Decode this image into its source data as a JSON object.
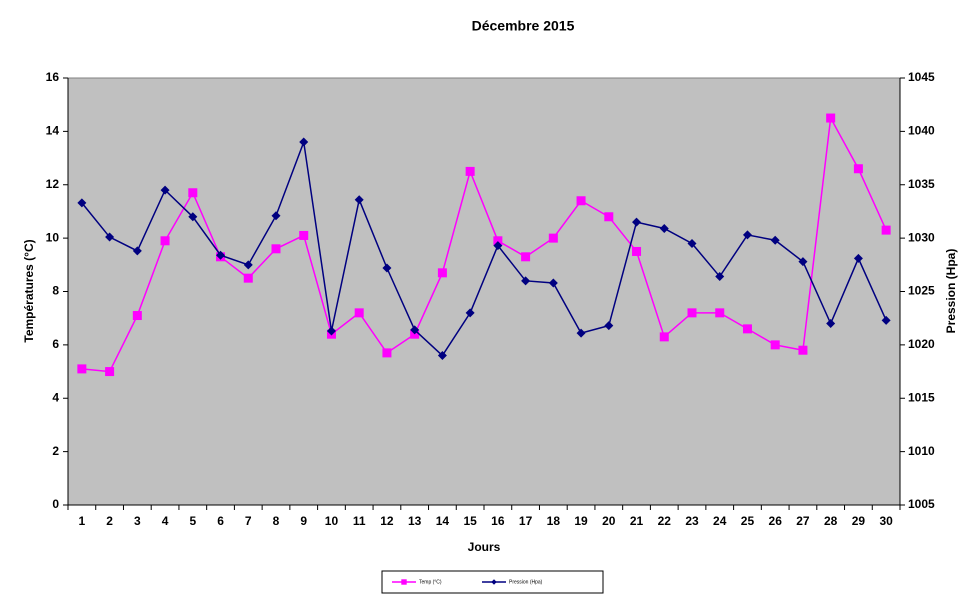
{
  "chart_data": {
    "type": "line",
    "title": "Décembre 2015",
    "x_label": "Jours",
    "y_label": "Températures (°C)",
    "y2_label": "Pression (Hpa)",
    "categories": [
      "1",
      "2",
      "3",
      "4",
      "5",
      "6",
      "7",
      "8",
      "9",
      "10",
      "11",
      "12",
      "13",
      "14",
      "15",
      "16",
      "17",
      "18",
      "19",
      "20",
      "21",
      "22",
      "23",
      "24",
      "25",
      "26",
      "27",
      "28",
      "29",
      "30"
    ],
    "series": [
      {
        "name": "Temp (°C)",
        "color": "#ff00ff",
        "marker": "square",
        "values": [
          5.1,
          5.0,
          7.1,
          9.9,
          11.7,
          9.3,
          8.5,
          9.6,
          10.1,
          6.4,
          7.2,
          5.7,
          6.4,
          8.7,
          12.5,
          9.9,
          9.3,
          10.0,
          11.4,
          10.8,
          9.5,
          6.3,
          7.2,
          7.2,
          6.6,
          6.0,
          5.8,
          14.5,
          12.6,
          10.3
        ]
      },
      {
        "name": "Pression (Hpa)",
        "color": "#000080",
        "marker": "diamond",
        "axis": "y2",
        "values": [
          1033.3,
          1030.1,
          1028.8,
          1034.5,
          1032.0,
          1028.4,
          1027.5,
          1032.1,
          1039.0,
          1021.3,
          1033.6,
          1027.2,
          1021.4,
          1019.0,
          1023.0,
          1029.3,
          1026.0,
          1025.8,
          1021.1,
          1021.8,
          1031.5,
          1030.9,
          1029.5,
          1026.4,
          1030.3,
          1029.8,
          1027.8,
          1022.0,
          1028.1,
          1022.3
        ]
      }
    ],
    "ylim": [
      0,
      16
    ],
    "yticks": [
      0,
      2,
      4,
      6,
      8,
      10,
      12,
      14,
      16
    ],
    "y2lim": [
      1005,
      1045
    ],
    "y2ticks": [
      1005,
      1010,
      1015,
      1020,
      1025,
      1030,
      1035,
      1040,
      1045
    ],
    "plot_background": "#c0c0c0",
    "legend": "bottom"
  }
}
